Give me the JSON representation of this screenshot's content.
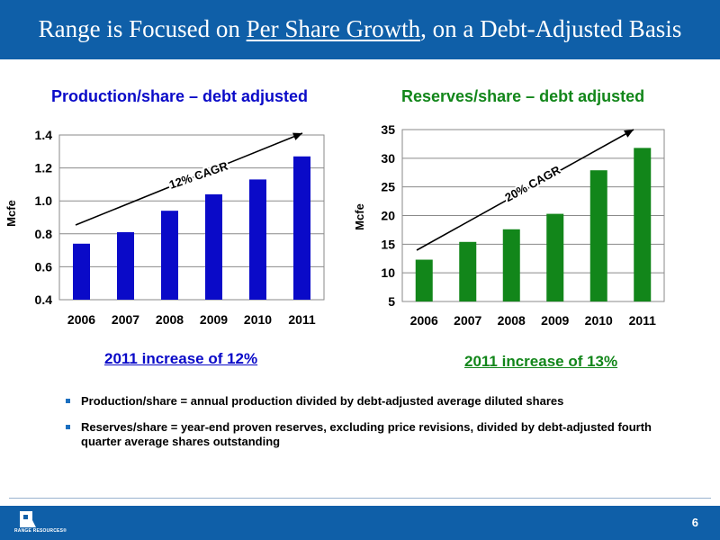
{
  "slide": {
    "title_pre": "Range is Focused on ",
    "title_link": "Per Share Growth",
    "title_post": ", on a Debt-Adjusted Basis",
    "page_number": "6",
    "logo_text": "RANGE RESOURCES®"
  },
  "colors": {
    "title_bar": "#0f5fa8",
    "left_series": "#0a0ac8",
    "right_series": "#12861a"
  },
  "chart_data": [
    {
      "type": "bar",
      "title": "Production/share – debt adjusted",
      "ylabel": "Mcfe",
      "xlabel": "",
      "categories": [
        "2006",
        "2007",
        "2008",
        "2009",
        "2010",
        "2011"
      ],
      "values": [
        0.74,
        0.81,
        0.94,
        1.04,
        1.13,
        1.27
      ],
      "ylim": [
        0.4,
        1.4
      ],
      "yticks": [
        "0.4",
        "0.6",
        "0.8",
        "1.0",
        "1.2",
        "1.4"
      ],
      "grid": true,
      "annotation": "12% CAGR",
      "note": "2011 increase of 12%",
      "color": "#0a0ac8"
    },
    {
      "type": "bar",
      "title": "Reserves/share – debt adjusted",
      "ylabel": "Mcfe",
      "xlabel": "",
      "categories": [
        "2006",
        "2007",
        "2008",
        "2009",
        "2010",
        "2011"
      ],
      "values": [
        12.3,
        15.4,
        17.6,
        20.3,
        27.9,
        31.8
      ],
      "ylim": [
        5,
        35
      ],
      "yticks": [
        "5",
        "10",
        "15",
        "20",
        "25",
        "30",
        "35"
      ],
      "grid": true,
      "annotation": "20% CAGR",
      "note": "2011 increase of 13%",
      "color": "#12861a"
    }
  ],
  "bullets": [
    "Production/share = annual production divided by debt-adjusted average diluted shares",
    "Reserves/share = year-end proven reserves, excluding price revisions, divided by debt-adjusted fourth quarter average shares outstanding"
  ]
}
